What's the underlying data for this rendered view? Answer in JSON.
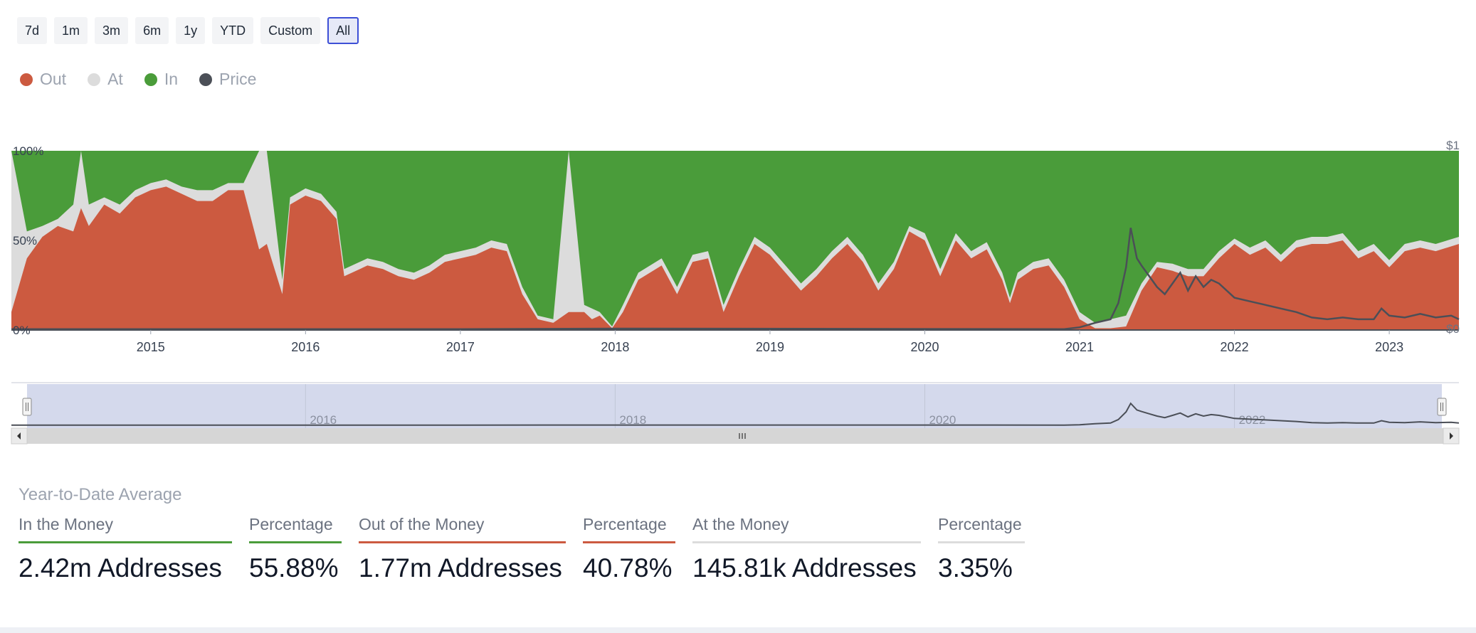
{
  "range_buttons": [
    "7d",
    "1m",
    "3m",
    "6m",
    "1y",
    "YTD",
    "Custom",
    "All"
  ],
  "active_range": "All",
  "legend": [
    {
      "label": "Out",
      "color": "#cc5a40"
    },
    {
      "label": "At",
      "color": "#dcdcdc"
    },
    {
      "label": "In",
      "color": "#4a9c3a"
    },
    {
      "label": "Price",
      "color": "#4b4f57"
    }
  ],
  "chart_data": {
    "type": "area",
    "stacked": "percent",
    "x_start": 2014.1,
    "x_end": 2023.45,
    "y_ticks": [
      "0%",
      "50%",
      "100%"
    ],
    "right_axis_ticks": [
      "$1",
      "$0"
    ],
    "x_ticks": [
      {
        "value": 2015,
        "label": "2015"
      },
      {
        "value": 2016,
        "label": "2016"
      },
      {
        "value": 2017,
        "label": "2017"
      },
      {
        "value": 2018,
        "label": "2018"
      },
      {
        "value": 2019,
        "label": "2019"
      },
      {
        "value": 2020,
        "label": "2020"
      },
      {
        "value": 2021,
        "label": "2021"
      },
      {
        "value": 2022,
        "label": "2022"
      },
      {
        "value": 2023,
        "label": "2023"
      }
    ],
    "series": [
      {
        "name": "Out",
        "color": "#cc5a40",
        "points": [
          [
            2014.1,
            10
          ],
          [
            2014.2,
            40
          ],
          [
            2014.3,
            52
          ],
          [
            2014.4,
            58
          ],
          [
            2014.5,
            55
          ],
          [
            2014.55,
            68
          ],
          [
            2014.6,
            58
          ],
          [
            2014.7,
            70
          ],
          [
            2014.8,
            65
          ],
          [
            2014.9,
            74
          ],
          [
            2015.0,
            78
          ],
          [
            2015.1,
            80
          ],
          [
            2015.2,
            76
          ],
          [
            2015.3,
            72
          ],
          [
            2015.4,
            72
          ],
          [
            2015.5,
            78
          ],
          [
            2015.6,
            78
          ],
          [
            2015.7,
            45
          ],
          [
            2015.75,
            48
          ],
          [
            2015.85,
            20
          ],
          [
            2015.9,
            70
          ],
          [
            2016.0,
            75
          ],
          [
            2016.1,
            72
          ],
          [
            2016.2,
            62
          ],
          [
            2016.25,
            30
          ],
          [
            2016.3,
            32
          ],
          [
            2016.4,
            36
          ],
          [
            2016.5,
            34
          ],
          [
            2016.6,
            30
          ],
          [
            2016.7,
            28
          ],
          [
            2016.8,
            32
          ],
          [
            2016.9,
            38
          ],
          [
            2017.0,
            40
          ],
          [
            2017.1,
            42
          ],
          [
            2017.2,
            46
          ],
          [
            2017.3,
            44
          ],
          [
            2017.4,
            20
          ],
          [
            2017.5,
            6
          ],
          [
            2017.6,
            4
          ],
          [
            2017.7,
            10
          ],
          [
            2017.8,
            10
          ],
          [
            2017.85,
            6
          ],
          [
            2017.9,
            8
          ],
          [
            2017.98,
            1
          ],
          [
            2018.05,
            10
          ],
          [
            2018.15,
            28
          ],
          [
            2018.3,
            36
          ],
          [
            2018.4,
            20
          ],
          [
            2018.5,
            38
          ],
          [
            2018.6,
            40
          ],
          [
            2018.7,
            10
          ],
          [
            2018.8,
            30
          ],
          [
            2018.9,
            48
          ],
          [
            2019.0,
            42
          ],
          [
            2019.1,
            32
          ],
          [
            2019.2,
            22
          ],
          [
            2019.3,
            30
          ],
          [
            2019.4,
            40
          ],
          [
            2019.5,
            48
          ],
          [
            2019.6,
            38
          ],
          [
            2019.7,
            22
          ],
          [
            2019.8,
            34
          ],
          [
            2019.9,
            55
          ],
          [
            2020.0,
            50
          ],
          [
            2020.1,
            30
          ],
          [
            2020.2,
            50
          ],
          [
            2020.3,
            40
          ],
          [
            2020.4,
            45
          ],
          [
            2020.5,
            28
          ],
          [
            2020.55,
            15
          ],
          [
            2020.6,
            28
          ],
          [
            2020.7,
            34
          ],
          [
            2020.8,
            36
          ],
          [
            2020.9,
            24
          ],
          [
            2021.0,
            6
          ],
          [
            2021.1,
            1
          ],
          [
            2021.2,
            1
          ],
          [
            2021.3,
            2
          ],
          [
            2021.4,
            22
          ],
          [
            2021.5,
            35
          ],
          [
            2021.6,
            33
          ],
          [
            2021.7,
            30
          ],
          [
            2021.8,
            30
          ],
          [
            2021.9,
            40
          ],
          [
            2022.0,
            48
          ],
          [
            2022.1,
            42
          ],
          [
            2022.2,
            46
          ],
          [
            2022.3,
            38
          ],
          [
            2022.4,
            46
          ],
          [
            2022.5,
            48
          ],
          [
            2022.6,
            48
          ],
          [
            2022.7,
            50
          ],
          [
            2022.8,
            40
          ],
          [
            2022.9,
            44
          ],
          [
            2023.0,
            35
          ],
          [
            2023.1,
            44
          ],
          [
            2023.2,
            46
          ],
          [
            2023.3,
            44
          ],
          [
            2023.45,
            48
          ]
        ]
      },
      {
        "name": "At",
        "color": "#dcdcdc",
        "points": [
          [
            2014.1,
            100
          ],
          [
            2014.2,
            55
          ],
          [
            2014.3,
            58
          ],
          [
            2014.4,
            62
          ],
          [
            2014.5,
            70
          ],
          [
            2014.55,
            100
          ],
          [
            2014.6,
            70
          ],
          [
            2014.7,
            74
          ],
          [
            2014.8,
            70
          ],
          [
            2014.9,
            78
          ],
          [
            2015.0,
            82
          ],
          [
            2015.1,
            84
          ],
          [
            2015.2,
            80
          ],
          [
            2015.3,
            78
          ],
          [
            2015.4,
            78
          ],
          [
            2015.5,
            82
          ],
          [
            2015.6,
            82
          ],
          [
            2015.7,
            100
          ],
          [
            2015.75,
            100
          ],
          [
            2015.85,
            28
          ],
          [
            2015.9,
            74
          ],
          [
            2016.0,
            79
          ],
          [
            2016.1,
            76
          ],
          [
            2016.2,
            66
          ],
          [
            2016.25,
            34
          ],
          [
            2016.3,
            36
          ],
          [
            2016.4,
            40
          ],
          [
            2016.5,
            38
          ],
          [
            2016.6,
            34
          ],
          [
            2016.7,
            32
          ],
          [
            2016.8,
            36
          ],
          [
            2016.9,
            42
          ],
          [
            2017.0,
            44
          ],
          [
            2017.1,
            46
          ],
          [
            2017.2,
            50
          ],
          [
            2017.3,
            48
          ],
          [
            2017.4,
            24
          ],
          [
            2017.5,
            8
          ],
          [
            2017.6,
            6
          ],
          [
            2017.7,
            100
          ],
          [
            2017.8,
            14
          ],
          [
            2017.85,
            12
          ],
          [
            2017.9,
            10
          ],
          [
            2017.98,
            2
          ],
          [
            2018.05,
            14
          ],
          [
            2018.15,
            32
          ],
          [
            2018.3,
            40
          ],
          [
            2018.4,
            24
          ],
          [
            2018.5,
            42
          ],
          [
            2018.6,
            44
          ],
          [
            2018.7,
            14
          ],
          [
            2018.8,
            34
          ],
          [
            2018.9,
            52
          ],
          [
            2019.0,
            46
          ],
          [
            2019.1,
            36
          ],
          [
            2019.2,
            26
          ],
          [
            2019.3,
            34
          ],
          [
            2019.4,
            44
          ],
          [
            2019.5,
            52
          ],
          [
            2019.6,
            42
          ],
          [
            2019.7,
            26
          ],
          [
            2019.8,
            38
          ],
          [
            2019.9,
            58
          ],
          [
            2020.0,
            54
          ],
          [
            2020.1,
            34
          ],
          [
            2020.2,
            54
          ],
          [
            2020.3,
            44
          ],
          [
            2020.4,
            49
          ],
          [
            2020.5,
            32
          ],
          [
            2020.55,
            18
          ],
          [
            2020.6,
            32
          ],
          [
            2020.7,
            38
          ],
          [
            2020.8,
            40
          ],
          [
            2020.9,
            28
          ],
          [
            2021.0,
            10
          ],
          [
            2021.1,
            4
          ],
          [
            2021.2,
            6
          ],
          [
            2021.3,
            8
          ],
          [
            2021.4,
            26
          ],
          [
            2021.5,
            38
          ],
          [
            2021.6,
            37
          ],
          [
            2021.7,
            34
          ],
          [
            2021.8,
            34
          ],
          [
            2021.9,
            44
          ],
          [
            2022.0,
            51
          ],
          [
            2022.1,
            46
          ],
          [
            2022.2,
            50
          ],
          [
            2022.3,
            42
          ],
          [
            2022.4,
            50
          ],
          [
            2022.5,
            52
          ],
          [
            2022.6,
            52
          ],
          [
            2022.7,
            54
          ],
          [
            2022.8,
            44
          ],
          [
            2022.9,
            48
          ],
          [
            2023.0,
            39
          ],
          [
            2023.1,
            48
          ],
          [
            2023.2,
            50
          ],
          [
            2023.3,
            48
          ],
          [
            2023.45,
            52
          ]
        ]
      },
      {
        "name": "In",
        "color": "#4a9c3a",
        "points": [
          [
            2014.1,
            100
          ],
          [
            2023.45,
            100
          ]
        ]
      },
      {
        "name": "Price",
        "color": "#4b4f57",
        "points": [
          [
            2014.1,
            0.5
          ],
          [
            2017.0,
            0.5
          ],
          [
            2018.0,
            0.8
          ],
          [
            2020.9,
            0.5
          ],
          [
            2021.0,
            1.5
          ],
          [
            2021.1,
            4
          ],
          [
            2021.2,
            6
          ],
          [
            2021.25,
            15
          ],
          [
            2021.3,
            35
          ],
          [
            2021.33,
            57
          ],
          [
            2021.37,
            40
          ],
          [
            2021.4,
            36
          ],
          [
            2021.45,
            30
          ],
          [
            2021.5,
            24
          ],
          [
            2021.55,
            20
          ],
          [
            2021.6,
            26
          ],
          [
            2021.65,
            32
          ],
          [
            2021.7,
            22
          ],
          [
            2021.75,
            30
          ],
          [
            2021.8,
            24
          ],
          [
            2021.85,
            28
          ],
          [
            2021.9,
            26
          ],
          [
            2022.0,
            18
          ],
          [
            2022.1,
            16
          ],
          [
            2022.2,
            14
          ],
          [
            2022.3,
            12
          ],
          [
            2022.4,
            10
          ],
          [
            2022.5,
            7
          ],
          [
            2022.6,
            6
          ],
          [
            2022.7,
            7
          ],
          [
            2022.8,
            6
          ],
          [
            2022.9,
            6
          ],
          [
            2022.95,
            12
          ],
          [
            2023.0,
            8
          ],
          [
            2023.1,
            7
          ],
          [
            2023.2,
            9
          ],
          [
            2023.3,
            7
          ],
          [
            2023.4,
            8
          ],
          [
            2023.45,
            6
          ]
        ]
      }
    ],
    "navigator": {
      "labels": [
        {
          "value": 2016,
          "label": "2016"
        },
        {
          "value": 2018,
          "label": "2018"
        },
        {
          "value": 2020,
          "label": "2020"
        },
        {
          "value": 2022,
          "label": "2022"
        }
      ]
    }
  },
  "stats": {
    "title": "Year-to-Date Average",
    "items": [
      {
        "label": "In the Money",
        "value": "2.42m Addresses",
        "color": "#4a9c3a"
      },
      {
        "label": "Percentage",
        "value": "55.88%",
        "color": "#4a9c3a"
      },
      {
        "label": "Out of the Money",
        "value": "1.77m Addresses",
        "color": "#cc5a40"
      },
      {
        "label": "Percentage",
        "value": "40.78%",
        "color": "#cc5a40"
      },
      {
        "label": "At the Money",
        "value": "145.81k Addresses",
        "color": "#dcdcdc"
      },
      {
        "label": "Percentage",
        "value": "3.35%",
        "color": "#dcdcdc"
      }
    ]
  }
}
